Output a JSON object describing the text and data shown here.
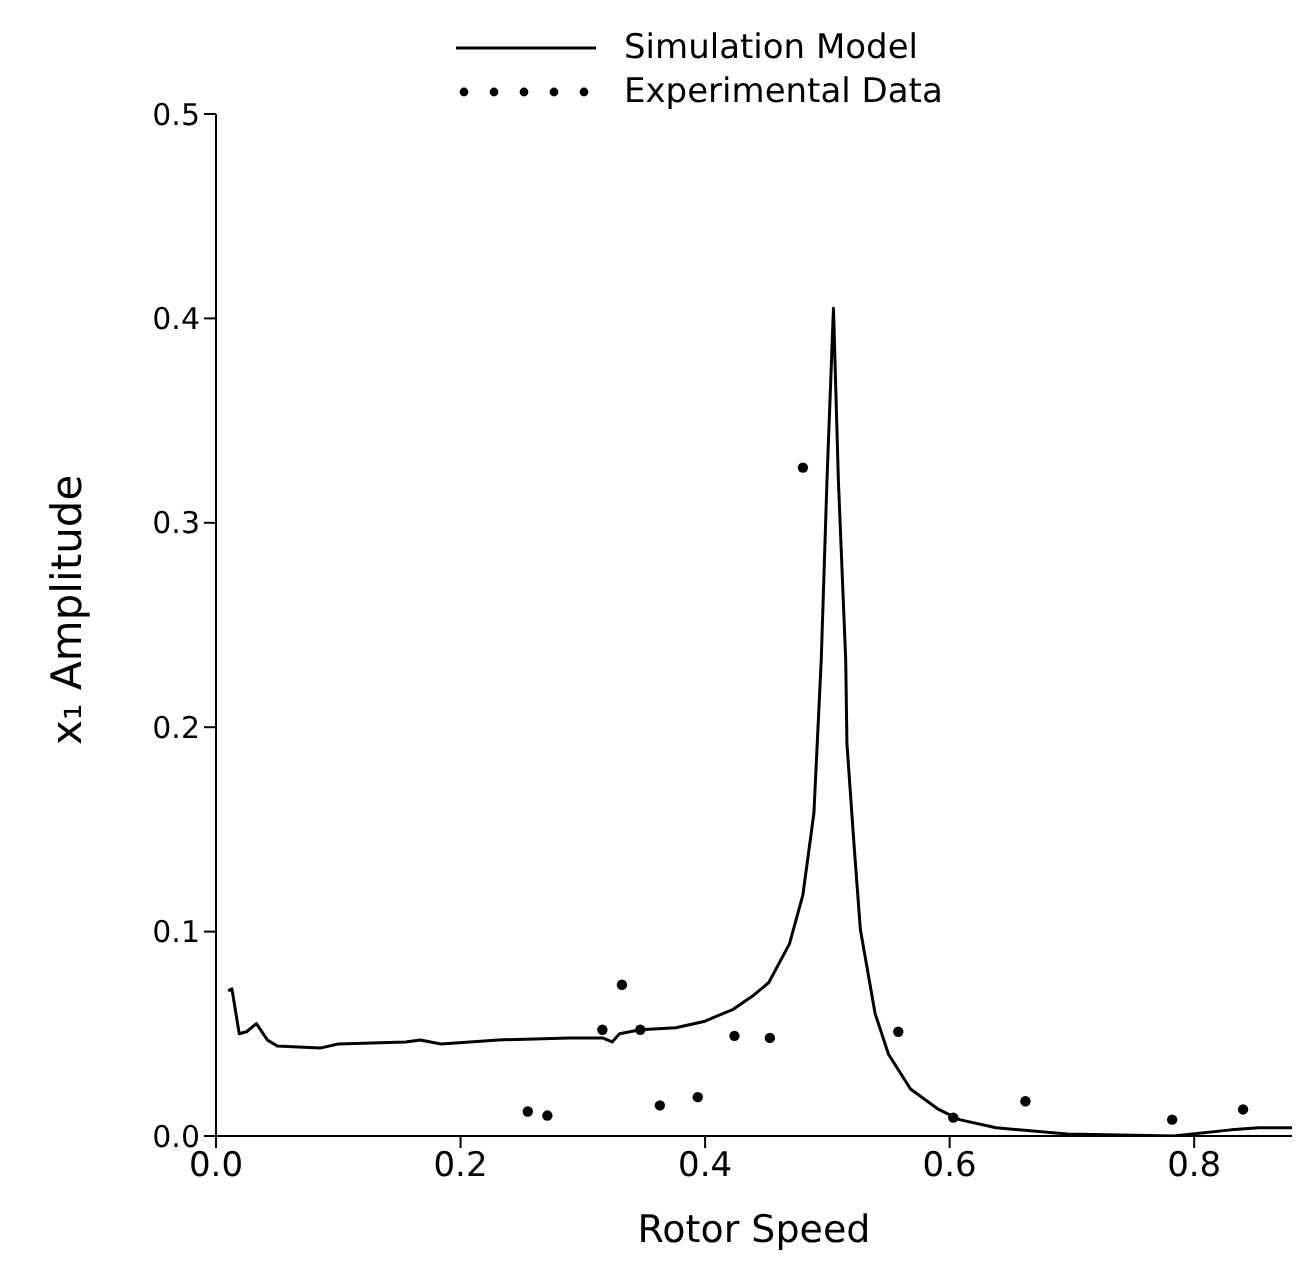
{
  "chart_data": {
    "type": "line",
    "xlabel": "Rotor Speed",
    "ylabel": "x₁ Amplitude",
    "xlim": [
      0,
      0.88
    ],
    "ylim": [
      0,
      0.5
    ],
    "xticks": [
      {
        "value": 0,
        "label": "0.0"
      },
      0.2,
      0.4,
      0.6,
      0.8
    ],
    "yticks": [
      {
        "value": 0,
        "label": "0.0"
      },
      0.1,
      0.2,
      0.3,
      0.4,
      0.5
    ],
    "legend": "top",
    "grid": false,
    "series": [
      {
        "name": "Simulation Model",
        "color": "#000000",
        "marker": "none",
        "x": [
          0.01,
          0.013,
          0.019,
          0.025,
          0.033,
          0.042,
          0.05,
          0.085,
          0.1,
          0.155,
          0.167,
          0.184,
          0.231,
          0.289,
          0.316,
          0.324,
          0.33,
          0.347,
          0.376,
          0.399,
          0.423,
          0.44,
          0.452,
          0.469,
          0.48,
          0.489,
          0.495,
          0.4997,
          0.505,
          0.509,
          0.515,
          0.516,
          0.522,
          0.527,
          0.539,
          0.55,
          0.568,
          0.591,
          0.608,
          0.638,
          0.696,
          0.783,
          0.83,
          0.853,
          0.88
        ],
        "values": [
          0.071,
          0.072,
          0.05,
          0.051,
          0.055,
          0.047,
          0.044,
          0.043,
          0.045,
          0.046,
          0.047,
          0.045,
          0.047,
          0.048,
          0.048,
          0.046,
          0.05,
          0.052,
          0.053,
          0.056,
          0.062,
          0.069,
          0.075,
          0.094,
          0.118,
          0.158,
          0.233,
          0.321,
          0.405,
          0.321,
          0.233,
          0.192,
          0.141,
          0.101,
          0.06,
          0.04,
          0.023,
          0.013,
          0.008,
          0.004,
          0.001,
          0.0,
          0.003,
          0.004,
          0.004
        ]
      },
      {
        "name": "Experimental Data",
        "type": "scatter",
        "color": "#000000",
        "marker": "circle",
        "x": [
          0.255,
          0.271,
          0.316,
          0.332,
          0.347,
          0.363,
          0.394,
          0.424,
          0.453,
          0.48,
          0.558,
          0.603,
          0.662,
          0.782,
          0.84
        ],
        "values": [
          0.012,
          0.01,
          0.052,
          0.074,
          0.052,
          0.015,
          0.019,
          0.049,
          0.048,
          0.327,
          0.051,
          0.009,
          0.017,
          0.008,
          0.013
        ]
      }
    ]
  }
}
